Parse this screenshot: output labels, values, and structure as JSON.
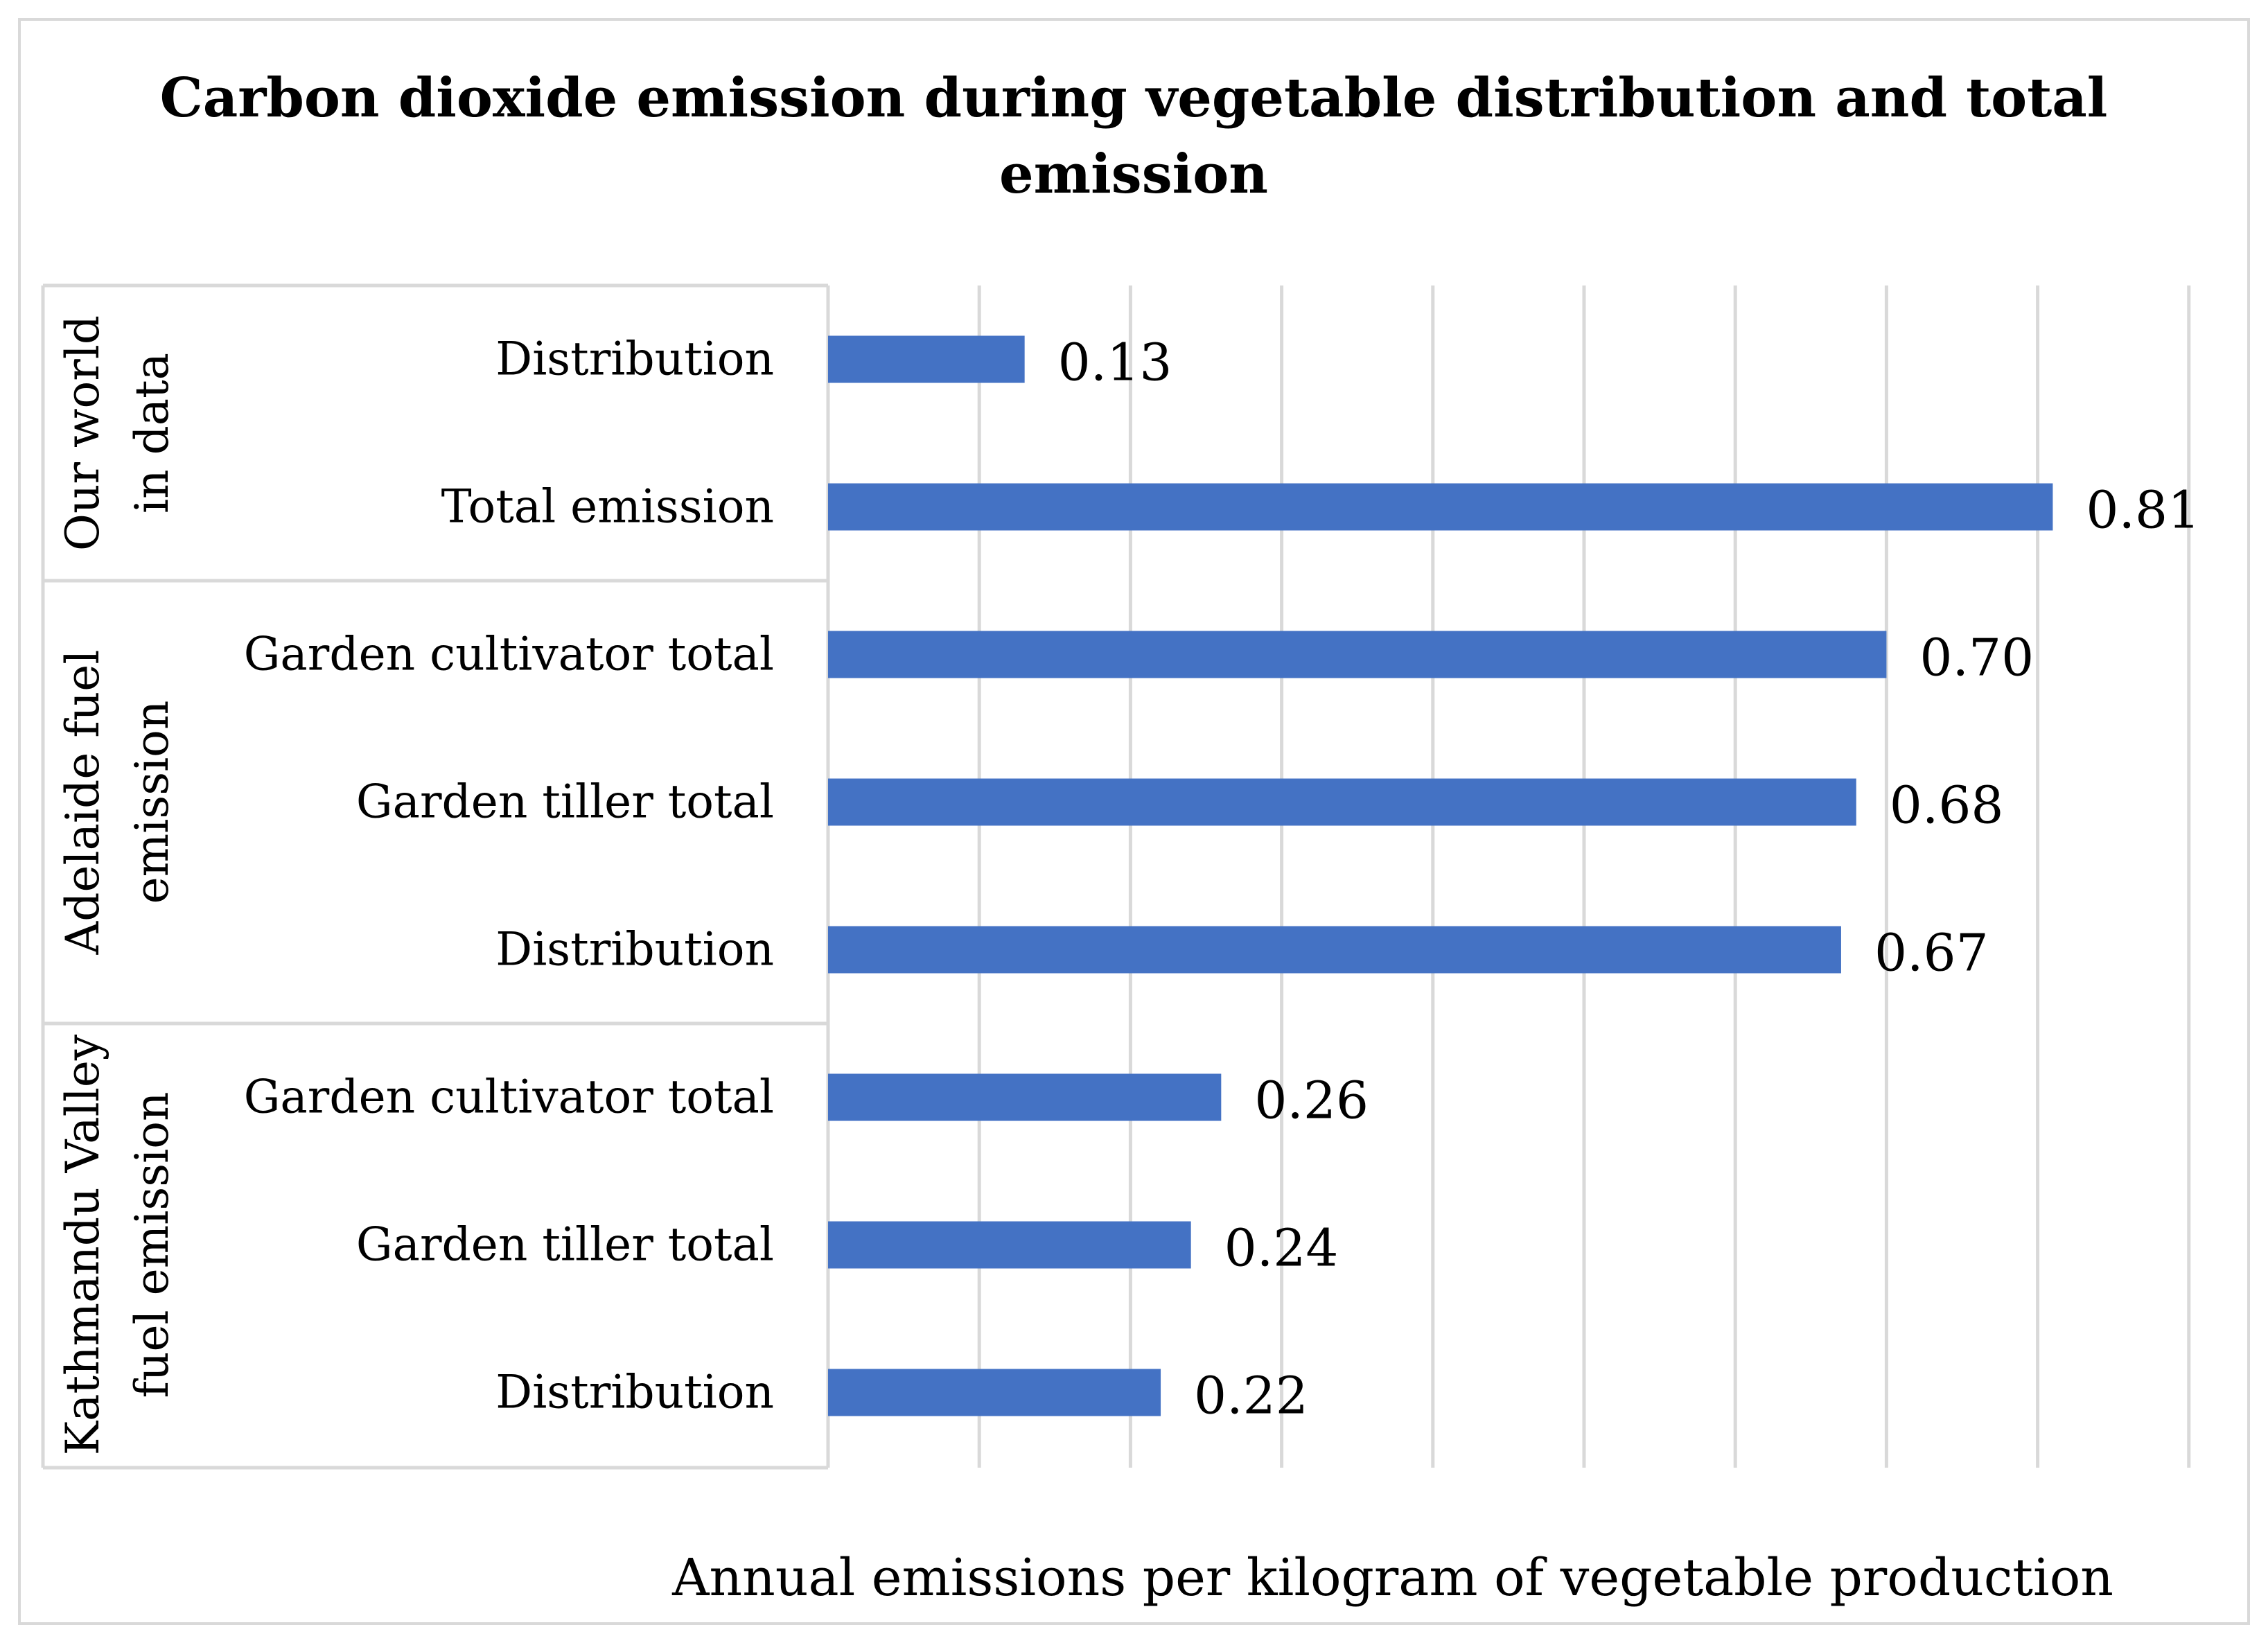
{
  "chart_data": {
    "type": "bar",
    "orientation": "horizontal",
    "title_lines": [
      "Carbon dioxide emission  during vegetable distribution and total",
      "emission"
    ],
    "xlabel": "Annual emissions per kilogram of vegetable production",
    "ylabel": "",
    "xlim": [
      0,
      0.9
    ],
    "grid": true,
    "legend": "none",
    "color": "#4472C4",
    "groups": [
      {
        "name_lines": [
          "Our world",
          "in data"
        ],
        "categories": [
          "Distribution",
          "Total emission"
        ],
        "values": [
          0.13,
          0.81
        ],
        "value_labels": [
          "0.13",
          "0.81"
        ]
      },
      {
        "name_lines": [
          "Adelaide fuel",
          "emission"
        ],
        "categories": [
          "Garden cultivator total",
          "Garden tiller total",
          "Distribution"
        ],
        "values": [
          0.7,
          0.68,
          0.67
        ],
        "value_labels": [
          "0.70",
          "0.68",
          "0.67"
        ]
      },
      {
        "name_lines": [
          "Kathmandu Valley",
          "fuel emission"
        ],
        "categories": [
          "Garden cultivator total",
          "Garden tiller total",
          "Distribution"
        ],
        "values": [
          0.26,
          0.24,
          0.22
        ],
        "value_labels": [
          "0.26",
          "0.24",
          "0.22"
        ]
      }
    ]
  }
}
